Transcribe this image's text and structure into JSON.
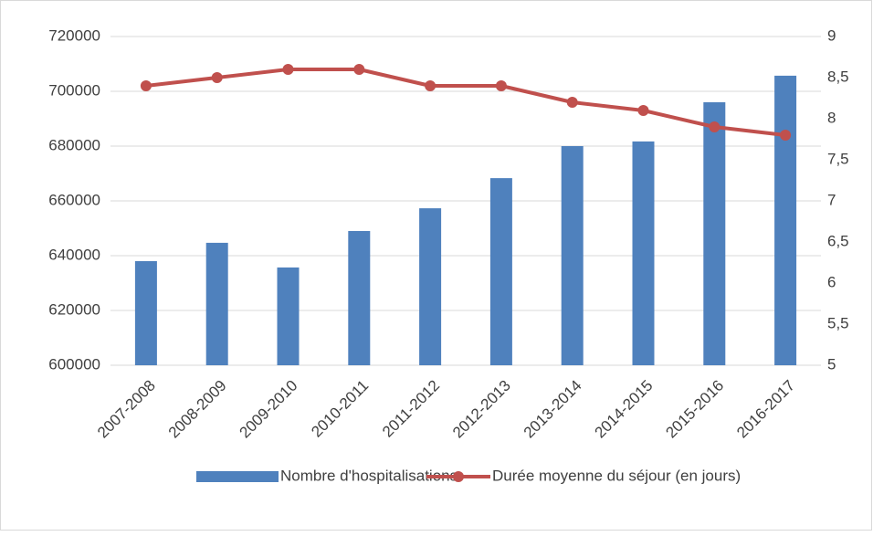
{
  "chart_data": {
    "type": "combo",
    "categories": [
      "2007-2008",
      "2008-2009",
      "2009-2010",
      "2010-2011",
      "2011-2012",
      "2012-2013",
      "2013-2014",
      "2014-2015",
      "2015-2016",
      "2016-2017"
    ],
    "series": [
      {
        "name": "Nombre d'hospitalisations",
        "type": "bar",
        "color": "#4f81bd",
        "values": [
          638000,
          644700,
          635700,
          649000,
          657300,
          668300,
          680000,
          681700,
          696000,
          705700
        ]
      },
      {
        "name": "Durée moyenne du séjour (en jours)",
        "type": "line",
        "axis": "y2",
        "color": "#c0504d",
        "values": [
          8.4,
          8.5,
          8.6,
          8.6,
          8.4,
          8.4,
          8.2,
          8.1,
          7.9,
          7.8
        ]
      }
    ],
    "ylim": [
      600000,
      720000
    ],
    "yticks": [
      600000,
      620000,
      640000,
      660000,
      680000,
      700000,
      720000
    ],
    "y2lim": [
      5,
      9
    ],
    "y2ticks": [
      5,
      {
        "value": 5.5,
        "label": "5,5"
      },
      6,
      {
        "value": 6.5,
        "label": "6,5"
      },
      7,
      {
        "value": 7.5,
        "label": "7,5"
      },
      8,
      {
        "value": 8.5,
        "label": "8,5"
      },
      9
    ],
    "grid": true,
    "legend": "bottom"
  }
}
